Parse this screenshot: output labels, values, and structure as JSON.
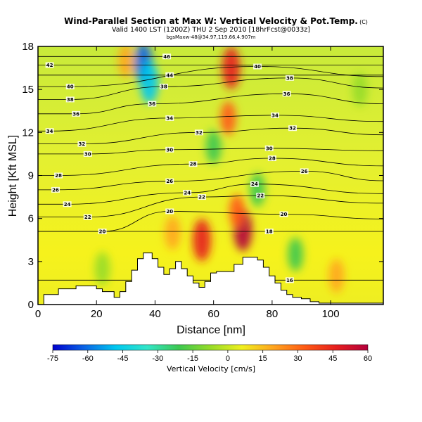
{
  "header": {
    "title": "Wind-Parallel Section at Max W: Vertical Velocity & Pot.Temp.",
    "title_mark": "(C)",
    "subtitle": "Valid 1400 LST (1200Z) THU 2 Sep 2010 [18hrFcst@0033z]",
    "subtitle2": "bgsMaxw-48@34.97,119.66,4.907m"
  },
  "chart_data": {
    "type": "heatmap",
    "xlabel": "Distance [nm]",
    "ylabel": "Height [Kft MSL]",
    "xlim": [
      0,
      118
    ],
    "ylim": [
      0,
      18
    ],
    "x_ticks": [
      0,
      20,
      40,
      60,
      80,
      100
    ],
    "y_ticks": [
      0,
      3,
      6,
      9,
      12,
      15,
      18
    ],
    "colorbar": {
      "label": "Vertical Velocity [cm/s]",
      "ticks": [
        -75,
        -60,
        -45,
        -30,
        -15,
        0,
        15,
        30,
        45,
        60
      ],
      "range": [
        -75,
        60
      ],
      "colors": [
        "#0000cd",
        "#0a64e6",
        "#00c8f0",
        "#32e6c8",
        "#3cc850",
        "#96dc28",
        "#f0f01e",
        "#ffa51e",
        "#ff5a14",
        "#e61e1e",
        "#b4003c"
      ]
    },
    "vertical_velocity_cells": [
      {
        "x": 36,
        "y": 16.8,
        "w": -60
      },
      {
        "x": 38,
        "y": 15.5,
        "w": -45
      },
      {
        "x": 66,
        "y": 16.5,
        "w": 40
      },
      {
        "x": 65,
        "y": 13,
        "w": 30
      },
      {
        "x": 70,
        "y": 5.2,
        "w": 60
      },
      {
        "x": 68,
        "y": 6.5,
        "w": 35
      },
      {
        "x": 56,
        "y": 4.5,
        "w": 40
      },
      {
        "x": 46,
        "y": 5,
        "w": 25
      },
      {
        "x": 30,
        "y": 17,
        "w": 25
      },
      {
        "x": 60,
        "y": 11,
        "w": -15
      },
      {
        "x": 75,
        "y": 8,
        "w": -20
      },
      {
        "x": 88,
        "y": 3.5,
        "w": -15
      },
      {
        "x": 22,
        "y": 2.5,
        "w": -10
      },
      {
        "x": 102,
        "y": 2,
        "w": 15
      },
      {
        "x": 110,
        "y": 15,
        "w": -10
      }
    ],
    "potential_temperature_contours": [
      {
        "label": "20",
        "x": 22,
        "y": 5.1
      },
      {
        "label": "22",
        "x": 17,
        "y": 6.1
      },
      {
        "label": "24",
        "x": 10,
        "y": 7.0
      },
      {
        "label": "26",
        "x": 6,
        "y": 8.0
      },
      {
        "label": "28",
        "x": 7,
        "y": 9.0
      },
      {
        "label": "30",
        "x": 17,
        "y": 10.5
      },
      {
        "label": "32",
        "x": 15,
        "y": 11.2
      },
      {
        "label": "34",
        "x": 4,
        "y": 12.1
      },
      {
        "label": "36",
        "x": 13,
        "y": 13.3
      },
      {
        "label": "38",
        "x": 11,
        "y": 14.3
      },
      {
        "label": "40",
        "x": 11,
        "y": 15.2
      },
      {
        "label": "42",
        "x": 4,
        "y": 16.7
      },
      {
        "label": "46",
        "x": 44,
        "y": 17.3
      },
      {
        "label": "44",
        "x": 45,
        "y": 16.0
      },
      {
        "label": "38",
        "x": 43,
        "y": 15.2
      },
      {
        "label": "36",
        "x": 39,
        "y": 14.0
      },
      {
        "label": "34",
        "x": 45,
        "y": 13.0
      },
      {
        "label": "32",
        "x": 55,
        "y": 12.0
      },
      {
        "label": "30",
        "x": 45,
        "y": 10.8
      },
      {
        "label": "28",
        "x": 53,
        "y": 9.8
      },
      {
        "label": "26",
        "x": 45,
        "y": 8.6
      },
      {
        "label": "24",
        "x": 51,
        "y": 7.8
      },
      {
        "label": "22",
        "x": 56,
        "y": 7.5
      },
      {
        "label": "20",
        "x": 45,
        "y": 6.5
      },
      {
        "label": "40",
        "x": 75,
        "y": 16.6
      },
      {
        "label": "38",
        "x": 86,
        "y": 15.8
      },
      {
        "label": "36",
        "x": 85,
        "y": 14.7
      },
      {
        "label": "34",
        "x": 81,
        "y": 13.2
      },
      {
        "label": "32",
        "x": 87,
        "y": 12.3
      },
      {
        "label": "30",
        "x": 79,
        "y": 10.9
      },
      {
        "label": "28",
        "x": 80,
        "y": 10.2
      },
      {
        "label": "26",
        "x": 91,
        "y": 9.3
      },
      {
        "label": "24",
        "x": 74,
        "y": 8.4
      },
      {
        "label": "22",
        "x": 76,
        "y": 7.6
      },
      {
        "label": "20",
        "x": 84,
        "y": 6.3
      },
      {
        "label": "18",
        "x": 79,
        "y": 5.1
      },
      {
        "label": "16",
        "x": 86,
        "y": 1.7
      }
    ],
    "terrain": [
      [
        0,
        0
      ],
      [
        2,
        0
      ],
      [
        2,
        0.7
      ],
      [
        7,
        0.7
      ],
      [
        7,
        1.1
      ],
      [
        13,
        1.1
      ],
      [
        13,
        1.3
      ],
      [
        20,
        1.3
      ],
      [
        20,
        1.1
      ],
      [
        22,
        1.1
      ],
      [
        22,
        0.9
      ],
      [
        26,
        0.9
      ],
      [
        26,
        0.5
      ],
      [
        28,
        0.5
      ],
      [
        28,
        0.9
      ],
      [
        30,
        0.9
      ],
      [
        30,
        1.6
      ],
      [
        32,
        1.6
      ],
      [
        32,
        2.4
      ],
      [
        34,
        2.4
      ],
      [
        34,
        3.2
      ],
      [
        36,
        3.2
      ],
      [
        36,
        3.6
      ],
      [
        39,
        3.6
      ],
      [
        39,
        3.2
      ],
      [
        41,
        3.2
      ],
      [
        41,
        2.6
      ],
      [
        43,
        2.6
      ],
      [
        43,
        2.1
      ],
      [
        45,
        2.1
      ],
      [
        45,
        2.5
      ],
      [
        47,
        2.5
      ],
      [
        47,
        3.0
      ],
      [
        49,
        3.0
      ],
      [
        49,
        2.5
      ],
      [
        51,
        2.5
      ],
      [
        51,
        2.0
      ],
      [
        53,
        2.0
      ],
      [
        53,
        1.5
      ],
      [
        55,
        1.5
      ],
      [
        55,
        1.2
      ],
      [
        57,
        1.2
      ],
      [
        57,
        1.6
      ],
      [
        59,
        1.6
      ],
      [
        59,
        2.2
      ],
      [
        61,
        2.2
      ],
      [
        61,
        2.3
      ],
      [
        67,
        2.3
      ],
      [
        67,
        2.8
      ],
      [
        70,
        2.8
      ],
      [
        70,
        3.3
      ],
      [
        75,
        3.3
      ],
      [
        75,
        3.1
      ],
      [
        77,
        3.1
      ],
      [
        77,
        2.6
      ],
      [
        79,
        2.6
      ],
      [
        79,
        2.0
      ],
      [
        81,
        2.0
      ],
      [
        81,
        1.5
      ],
      [
        83,
        1.5
      ],
      [
        83,
        1.0
      ],
      [
        85,
        1.0
      ],
      [
        85,
        0.7
      ],
      [
        87,
        0.7
      ],
      [
        87,
        0.5
      ],
      [
        90,
        0.5
      ],
      [
        90,
        0.4
      ],
      [
        93,
        0.4
      ],
      [
        93,
        0.2
      ],
      [
        96,
        0.2
      ],
      [
        96,
        0.1
      ],
      [
        118,
        0.1
      ],
      [
        118,
        0
      ]
    ]
  }
}
